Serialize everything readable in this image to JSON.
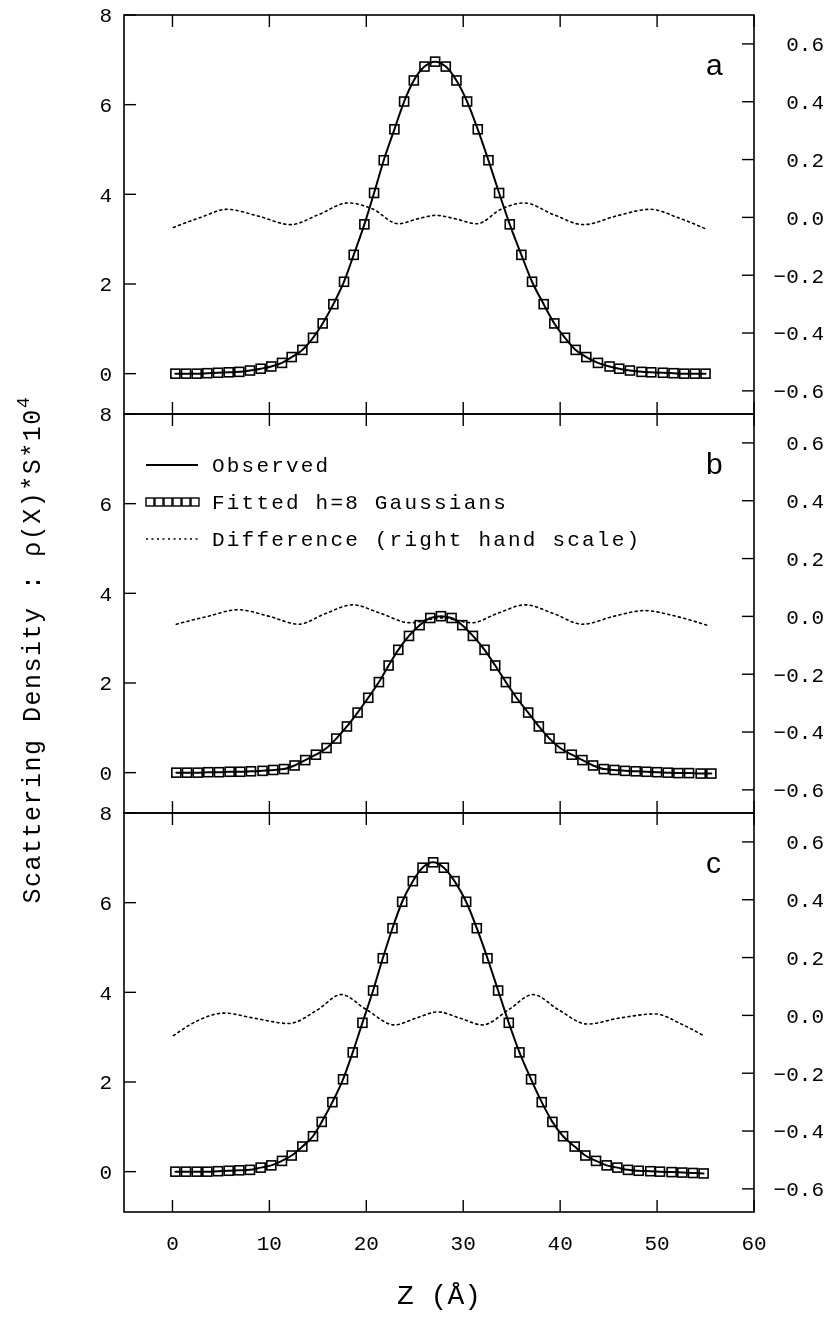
{
  "chart_data": [
    {
      "type": "line",
      "annotations": [
        "a"
      ],
      "xlim": [
        -5,
        60
      ],
      "xticks": [
        0,
        10,
        20,
        30,
        40,
        50,
        60
      ],
      "ylim": [
        -0.9,
        8
      ],
      "yticks": [
        0,
        2,
        4,
        6,
        8
      ],
      "y2lim": [
        -0.68,
        0.7
      ],
      "y2ticks": [
        {
          "value": 0.6,
          "label": "0.6"
        },
        {
          "value": 0.4,
          "label": "0.4"
        },
        {
          "value": 0.2,
          "label": "0.2"
        },
        {
          "value": 0,
          "label": "0.0"
        },
        {
          "value": -0.2,
          "label": "−0.2"
        },
        {
          "value": -0.4,
          "label": "−0.4"
        },
        {
          "value": -0.6,
          "label": "−0.6"
        }
      ],
      "tick_labels": "y",
      "series": [
        {
          "type": "line",
          "color": "#000000",
          "line_style": "solid",
          "marker": "none",
          "x": [
            0.3,
            1.4,
            2.5,
            3.6,
            4.7,
            5.8,
            6.9,
            8.0,
            9.1,
            10.2,
            11.3,
            12.3,
            13.4,
            14.5,
            15.5,
            16.6,
            17.7,
            18.7,
            19.8,
            20.8,
            21.8,
            22.9,
            23.9,
            24.9,
            26.0,
            27.1,
            28.2,
            29.3,
            30.4,
            31.5,
            32.6,
            33.7,
            34.8,
            36.0,
            37.1,
            38.3,
            39.4,
            40.5,
            41.6,
            42.7,
            43.9,
            45.1,
            46.1,
            47.2,
            48.4,
            49.4,
            50.6,
            51.7,
            52.8,
            53.9,
            55.0
          ],
          "values": [
            0,
            0,
            0,
            0.01,
            0.02,
            0.03,
            0.04,
            0.07,
            0.11,
            0.16,
            0.24,
            0.37,
            0.53,
            0.8,
            1.12,
            1.55,
            2.05,
            2.65,
            3.33,
            4.03,
            4.76,
            5.45,
            6.07,
            6.54,
            6.85,
            6.96,
            6.85,
            6.54,
            6.07,
            5.45,
            4.76,
            4.03,
            3.33,
            2.65,
            2.05,
            1.55,
            1.12,
            0.8,
            0.53,
            0.37,
            0.24,
            0.16,
            0.11,
            0.07,
            0.04,
            0.03,
            0.02,
            0.01,
            0,
            0,
            0
          ]
        },
        {
          "type": "scatter",
          "color": "#000000",
          "marker": "square",
          "x": [
            0.3,
            1.4,
            2.5,
            3.6,
            4.7,
            5.8,
            6.9,
            8.0,
            9.1,
            10.2,
            11.3,
            12.3,
            13.4,
            14.5,
            15.5,
            16.6,
            17.7,
            18.7,
            19.8,
            20.8,
            21.8,
            22.9,
            23.9,
            24.9,
            26.0,
            27.1,
            28.2,
            29.3,
            30.4,
            31.5,
            32.6,
            33.7,
            34.8,
            36.0,
            37.1,
            38.3,
            39.4,
            40.5,
            41.6,
            42.7,
            43.9,
            45.1,
            46.1,
            47.2,
            48.4,
            49.4,
            50.6,
            51.7,
            52.8,
            53.9,
            55.0
          ],
          "values": [
            0,
            0,
            0,
            0.01,
            0.02,
            0.03,
            0.04,
            0.07,
            0.11,
            0.16,
            0.24,
            0.37,
            0.53,
            0.8,
            1.12,
            1.55,
            2.05,
            2.65,
            3.33,
            4.03,
            4.76,
            5.45,
            6.07,
            6.54,
            6.85,
            6.96,
            6.85,
            6.54,
            6.07,
            5.45,
            4.76,
            4.03,
            3.33,
            2.65,
            2.05,
            1.55,
            1.12,
            0.8,
            0.53,
            0.37,
            0.24,
            0.16,
            0.11,
            0.07,
            0.04,
            0.03,
            0.02,
            0.01,
            0,
            0,
            0
          ]
        },
        {
          "type": "line",
          "color": "#000000",
          "line_style": "dotted",
          "marker": "none",
          "axis": "y2",
          "x": [
            0.1,
            2.9,
            5.6,
            8.8,
            12.2,
            15.1,
            18.1,
            20.6,
            23.3,
            25.3,
            27.2,
            29.2,
            31.4,
            34.0,
            36.3,
            39.3,
            42.4,
            45.8,
            49.3,
            52.1,
            54.9
          ],
          "values": [
            -0.035,
            0,
            0.028,
            0.005,
            -0.025,
            0.01,
            0.05,
            0.03,
            -0.022,
            -0.005,
            0.007,
            -0.005,
            -0.022,
            0.03,
            0.05,
            0.01,
            -0.025,
            0.005,
            0.028,
            0,
            -0.038
          ]
        }
      ]
    },
    {
      "type": "line",
      "annotations": [
        "b"
      ],
      "ylabel": "Scattering Density : ρ(X)*S*10$^{4}$",
      "legend": "top left",
      "xlim": [
        -5,
        60
      ],
      "xticks": [
        0,
        10,
        20,
        30,
        40,
        50,
        60
      ],
      "ylim": [
        -0.9,
        8
      ],
      "yticks": [
        0,
        2,
        4,
        6,
        8
      ],
      "y2lim": [
        -0.68,
        0.7
      ],
      "y2ticks": [
        {
          "value": 0.6,
          "label": "0.6"
        },
        {
          "value": 0.4,
          "label": "0.4"
        },
        {
          "value": 0.2,
          "label": "0.2"
        },
        {
          "value": 0,
          "label": "0.0"
        },
        {
          "value": -0.2,
          "label": "−0.2"
        },
        {
          "value": -0.4,
          "label": "−0.4"
        },
        {
          "value": -0.6,
          "label": "−0.6"
        }
      ],
      "tick_labels": "y",
      "series": [
        {
          "type": "line",
          "name": "Observed",
          "color": "#000000",
          "line_style": "solid",
          "marker": "none",
          "x": [
            0.4,
            1.5,
            2.6,
            3.7,
            4.8,
            5.9,
            7.0,
            8.1,
            9.3,
            10.4,
            11.5,
            12.6,
            13.7,
            14.8,
            15.9,
            16.9,
            18.0,
            19.1,
            20.2,
            21.3,
            22.3,
            23.3,
            24.4,
            25.5,
            26.6,
            27.7,
            28.8,
            29.9,
            31.0,
            32.2,
            33.3,
            34.4,
            35.5,
            36.7,
            37.8,
            38.9,
            40.0,
            41.2,
            42.3,
            43.4,
            44.5,
            45.6,
            46.7,
            47.8,
            48.9,
            50.0,
            51.1,
            52.2,
            53.3,
            54.5,
            55.6
          ],
          "values": [
            0,
            0,
            0,
            0.01,
            0.01,
            0.02,
            0.02,
            0.03,
            0.04,
            0.06,
            0.08,
            0.16,
            0.28,
            0.4,
            0.55,
            0.76,
            1.03,
            1.34,
            1.67,
            2.02,
            2.39,
            2.74,
            3.05,
            3.29,
            3.45,
            3.49,
            3.45,
            3.29,
            3.05,
            2.74,
            2.39,
            2.02,
            1.67,
            1.34,
            1.03,
            0.76,
            0.55,
            0.4,
            0.28,
            0.16,
            0.08,
            0.06,
            0.04,
            0.03,
            0.02,
            0.01,
            0,
            -0.01,
            -0.01,
            -0.02,
            -0.02
          ]
        },
        {
          "type": "scatter",
          "name": "Fitted h=8 Gaussians",
          "color": "#000000",
          "marker": "square",
          "x": [
            0.4,
            1.5,
            2.6,
            3.7,
            4.8,
            5.9,
            7.0,
            8.1,
            9.3,
            10.4,
            11.5,
            12.6,
            13.7,
            14.8,
            15.9,
            16.9,
            18.0,
            19.1,
            20.2,
            21.3,
            22.3,
            23.3,
            24.4,
            25.5,
            26.6,
            27.7,
            28.8,
            29.9,
            31.0,
            32.2,
            33.3,
            34.4,
            35.5,
            36.7,
            37.8,
            38.9,
            40.0,
            41.2,
            42.3,
            43.4,
            44.5,
            45.6,
            46.7,
            47.8,
            48.9,
            50.0,
            51.1,
            52.2,
            53.3,
            54.5,
            55.6
          ],
          "values": [
            0,
            0,
            0,
            0.01,
            0.01,
            0.02,
            0.02,
            0.03,
            0.04,
            0.06,
            0.08,
            0.16,
            0.28,
            0.4,
            0.55,
            0.76,
            1.03,
            1.34,
            1.67,
            2.02,
            2.39,
            2.74,
            3.05,
            3.29,
            3.45,
            3.49,
            3.45,
            3.29,
            3.05,
            2.74,
            2.39,
            2.02,
            1.67,
            1.34,
            1.03,
            0.76,
            0.55,
            0.4,
            0.28,
            0.16,
            0.08,
            0.06,
            0.04,
            0.03,
            0.02,
            0.01,
            0,
            -0.01,
            -0.01,
            -0.02,
            -0.02
          ]
        },
        {
          "type": "line",
          "name": "Difference (right hand scale)",
          "color": "#000000",
          "line_style": "dotted",
          "marker": "none",
          "axis": "y2",
          "x": [
            0.4,
            3.6,
            6.8,
            10.0,
            13.0,
            15.8,
            18.6,
            21.5,
            24.5,
            27.7,
            30.9,
            33.5,
            36.4,
            39.3,
            42.3,
            45.5,
            48.7,
            52.0,
            55.1
          ],
          "values": [
            -0.027,
            0,
            0.023,
            0,
            -0.027,
            0.01,
            0.04,
            0.01,
            -0.022,
            -0.005,
            -0.022,
            0.01,
            0.04,
            0.01,
            -0.027,
            0,
            0.02,
            0,
            -0.03
          ]
        }
      ]
    },
    {
      "type": "line",
      "annotations": [
        "c"
      ],
      "xlabel": "Z (Å)",
      "xlim": [
        -5,
        60
      ],
      "xticks": [
        0,
        10,
        20,
        30,
        40,
        50,
        60
      ],
      "ylim": [
        -0.9,
        8
      ],
      "yticks": [
        0,
        2,
        4,
        6,
        8
      ],
      "y2lim": [
        -0.68,
        0.7
      ],
      "y2ticks": [
        {
          "value": 0.6,
          "label": "0.6"
        },
        {
          "value": 0.4,
          "label": "0.4"
        },
        {
          "value": 0.2,
          "label": "0.2"
        },
        {
          "value": 0,
          "label": "0.0"
        },
        {
          "value": -0.2,
          "label": "−0.2"
        },
        {
          "value": -0.4,
          "label": "−0.4"
        },
        {
          "value": -0.6,
          "label": "−0.6"
        }
      ],
      "series": [
        {
          "type": "line",
          "color": "#000000",
          "line_style": "solid",
          "marker": "none",
          "x": [
            0.3,
            1.4,
            2.5,
            3.6,
            4.7,
            5.8,
            6.9,
            8.0,
            9.1,
            10.2,
            11.3,
            12.3,
            13.4,
            14.5,
            15.4,
            16.5,
            17.6,
            18.6,
            19.6,
            20.7,
            21.7,
            22.7,
            23.7,
            24.8,
            25.8,
            26.9,
            28.0,
            29.1,
            30.3,
            31.4,
            32.5,
            33.6,
            34.7,
            35.8,
            37.0,
            38.1,
            39.2,
            40.3,
            41.5,
            42.6,
            43.7,
            44.8,
            45.9,
            47.0,
            48.1,
            49.3,
            50.3,
            51.5,
            52.6,
            53.7,
            54.8
          ],
          "values": [
            0,
            0,
            0,
            0,
            0.01,
            0.02,
            0.03,
            0.04,
            0.09,
            0.14,
            0.24,
            0.36,
            0.56,
            0.79,
            1.11,
            1.55,
            2.06,
            2.66,
            3.32,
            4.04,
            4.76,
            5.43,
            6.02,
            6.48,
            6.78,
            6.9,
            6.78,
            6.48,
            6.02,
            5.43,
            4.76,
            4.04,
            3.32,
            2.66,
            2.06,
            1.55,
            1.11,
            0.79,
            0.56,
            0.36,
            0.24,
            0.14,
            0.09,
            0.04,
            0.02,
            0.01,
            0,
            -0.01,
            -0.02,
            -0.03,
            -0.04
          ]
        },
        {
          "type": "scatter",
          "color": "#000000",
          "marker": "square",
          "x": [
            0.3,
            1.4,
            2.5,
            3.6,
            4.7,
            5.8,
            6.9,
            8.0,
            9.1,
            10.2,
            11.3,
            12.3,
            13.4,
            14.5,
            15.4,
            16.5,
            17.6,
            18.6,
            19.6,
            20.7,
            21.7,
            22.7,
            23.7,
            24.8,
            25.8,
            26.9,
            28.0,
            29.1,
            30.3,
            31.4,
            32.5,
            33.6,
            34.7,
            35.8,
            37.0,
            38.1,
            39.2,
            40.3,
            41.5,
            42.6,
            43.7,
            44.8,
            45.9,
            47.0,
            48.1,
            49.3,
            50.3,
            51.5,
            52.6,
            53.7,
            54.8
          ],
          "values": [
            0,
            0,
            0,
            0,
            0.01,
            0.02,
            0.03,
            0.04,
            0.09,
            0.14,
            0.24,
            0.36,
            0.56,
            0.79,
            1.11,
            1.55,
            2.06,
            2.66,
            3.32,
            4.04,
            4.76,
            5.43,
            6.02,
            6.48,
            6.78,
            6.9,
            6.78,
            6.48,
            6.02,
            5.43,
            4.76,
            4.04,
            3.32,
            2.66,
            2.06,
            1.55,
            1.11,
            0.79,
            0.56,
            0.36,
            0.24,
            0.14,
            0.09,
            0.04,
            0.02,
            0.01,
            0,
            -0.01,
            -0.02,
            -0.03,
            -0.04
          ]
        },
        {
          "type": "line",
          "color": "#000000",
          "line_style": "dotted",
          "marker": "none",
          "axis": "y2",
          "x": [
            0.1,
            2.5,
            5.3,
            8.5,
            12.0,
            15.0,
            17.4,
            20.0,
            22.9,
            25.1,
            27.4,
            29.7,
            32.0,
            34.7,
            37.2,
            39.8,
            42.8,
            46.0,
            49.8,
            52.5,
            54.9
          ],
          "values": [
            -0.07,
            -0.02,
            0.008,
            -0.01,
            -0.028,
            0.02,
            0.072,
            0.02,
            -0.033,
            -0.01,
            0.012,
            -0.01,
            -0.033,
            0.02,
            0.072,
            0.02,
            -0.03,
            -0.01,
            0.005,
            -0.03,
            -0.072
          ]
        }
      ]
    }
  ]
}
